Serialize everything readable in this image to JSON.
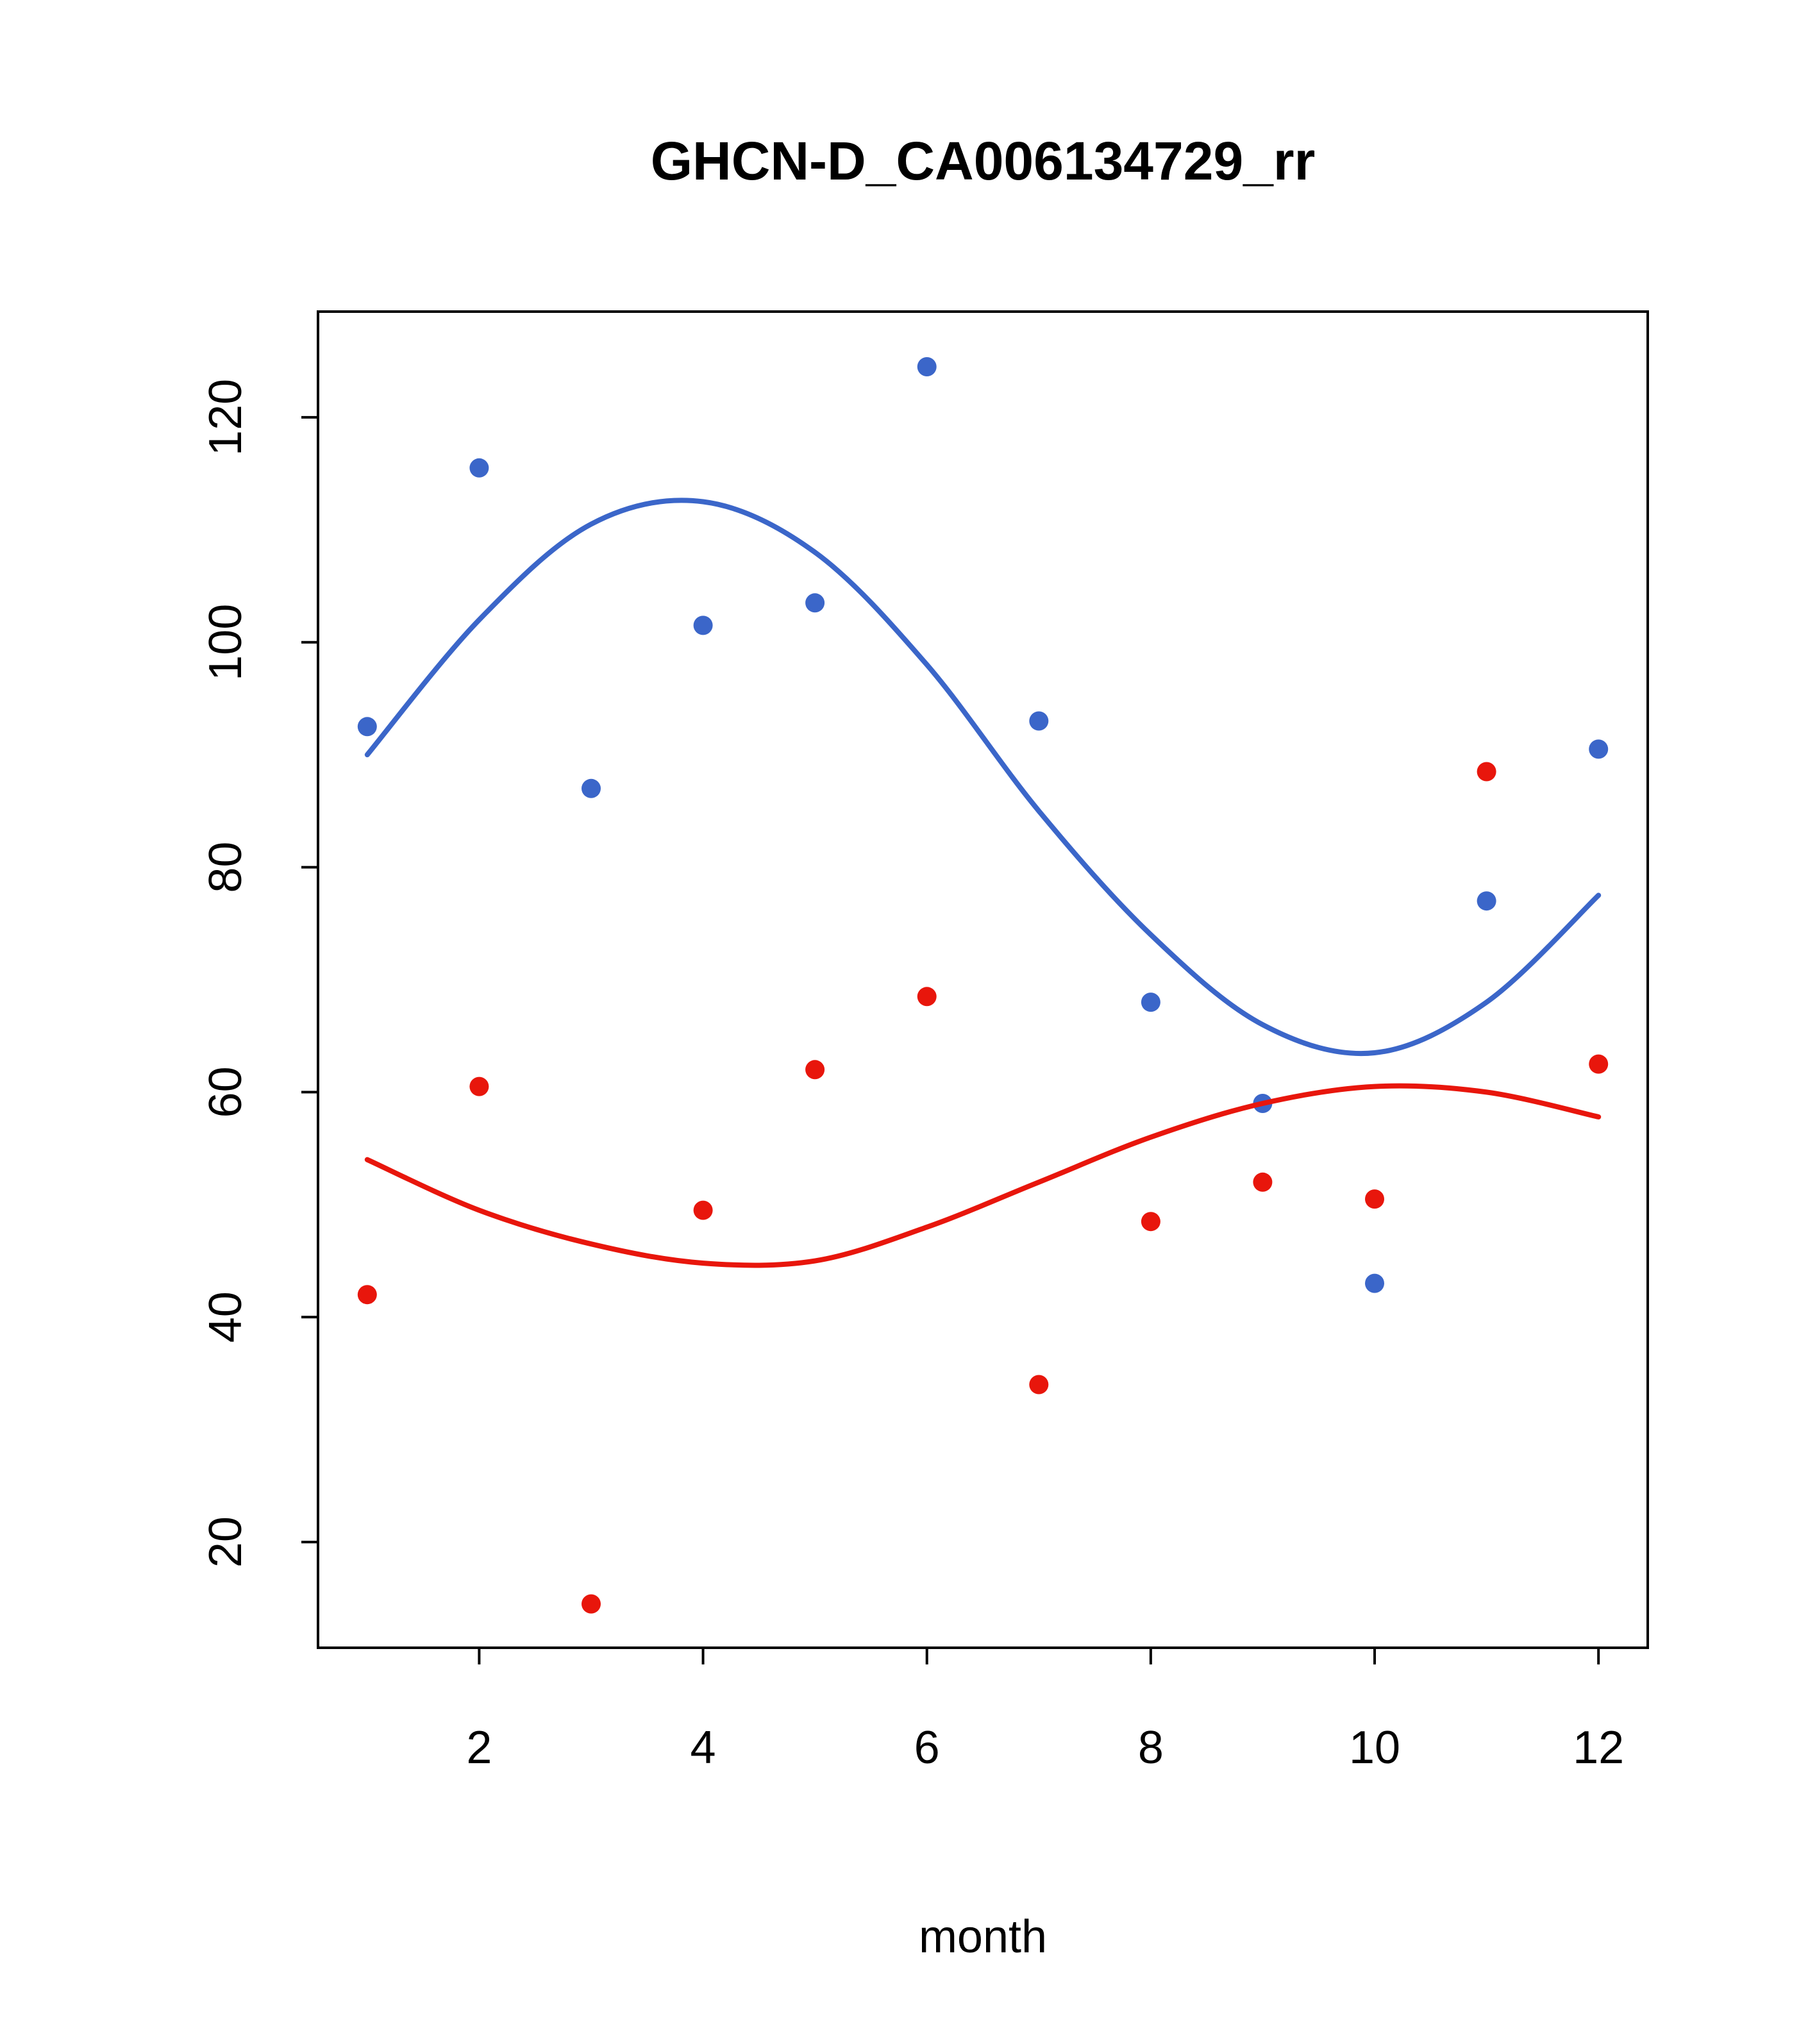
{
  "title": "GHCN-D_CA006134729_rr",
  "chart_data": {
    "type": "scatter",
    "title": "GHCN-D_CA006134729_rr",
    "xlabel": "month",
    "ylabel": "",
    "xlim": [
      0.56,
      12.44
    ],
    "ylim": [
      10.6,
      129.4
    ],
    "x_ticks": [
      2,
      4,
      6,
      8,
      10,
      12
    ],
    "y_ticks": [
      20,
      40,
      60,
      80,
      100,
      120
    ],
    "grid": false,
    "legend": "none",
    "x": [
      1,
      2,
      3,
      4,
      5,
      6,
      7,
      8,
      9,
      10,
      11,
      12
    ],
    "series": [
      {
        "name": "blue-points",
        "kind": "points",
        "color": "#3B66C9",
        "values": [
          92.5,
          115.5,
          87,
          101.5,
          103.5,
          124.5,
          93,
          68,
          59,
          43,
          77,
          90.5
        ]
      },
      {
        "name": "red-points",
        "kind": "points",
        "color": "#E8160C",
        "values": [
          42,
          60.5,
          14.5,
          49.5,
          62,
          68.5,
          34,
          48.5,
          52,
          50.5,
          88.5,
          62.5
        ]
      },
      {
        "name": "blue-trend-line",
        "kind": "line",
        "color": "#3B66C9",
        "values": [
          90,
          102,
          110.5,
          112.5,
          108,
          98,
          85,
          74,
          66,
          63.5,
          68,
          77.5
        ]
      },
      {
        "name": "red-trend-line",
        "kind": "line",
        "color": "#E8160C",
        "values": [
          54,
          49.5,
          46.5,
          44.8,
          45,
          48,
          52,
          56,
          59,
          60.5,
          60,
          57.8
        ]
      }
    ]
  }
}
